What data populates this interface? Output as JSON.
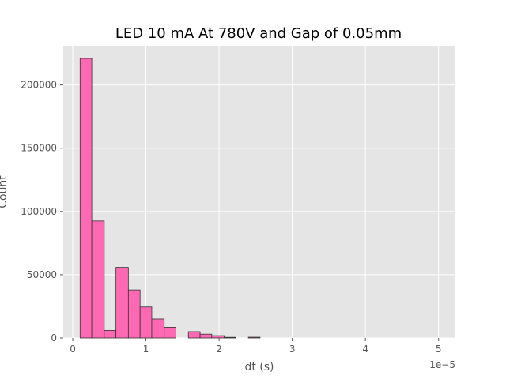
{
  "chart_data": {
    "type": "bar",
    "title": "LED 10 mA At 780V and Gap of 0.05mm",
    "xlabel": "dt (s)",
    "ylabel": "Count",
    "x_offset_label": "1e−5",
    "xlim": [
      -0.13,
      5.23
    ],
    "ylim": [
      0,
      231000
    ],
    "x_scale": "1e-5",
    "x_ticks": [
      0,
      1,
      2,
      3,
      4,
      5
    ],
    "x_tick_labels": [
      "0",
      "1",
      "2",
      "3",
      "4",
      "5"
    ],
    "y_ticks": [
      0,
      50000,
      100000,
      150000,
      200000
    ],
    "y_tick_labels": [
      "0",
      "50000",
      "100000",
      "150000",
      "200000"
    ],
    "grid": true,
    "bar_color": "#ff69b4",
    "edge_color": "#333333",
    "bins": [
      {
        "x0": 0.1,
        "x1": 0.26,
        "count": 221000
      },
      {
        "x0": 0.26,
        "x1": 0.43,
        "count": 92500
      },
      {
        "x0": 0.43,
        "x1": 0.59,
        "count": 6000
      },
      {
        "x0": 0.59,
        "x1": 0.76,
        "count": 55800
      },
      {
        "x0": 0.76,
        "x1": 0.92,
        "count": 38000
      },
      {
        "x0": 0.92,
        "x1": 1.08,
        "count": 24500
      },
      {
        "x0": 1.08,
        "x1": 1.25,
        "count": 15000
      },
      {
        "x0": 1.25,
        "x1": 1.41,
        "count": 8500
      },
      {
        "x0": 1.41,
        "x1": 1.58,
        "count": 0
      },
      {
        "x0": 1.58,
        "x1": 1.74,
        "count": 5000
      },
      {
        "x0": 1.74,
        "x1": 1.9,
        "count": 3000
      },
      {
        "x0": 1.9,
        "x1": 2.07,
        "count": 1800
      },
      {
        "x0": 2.07,
        "x1": 2.23,
        "count": 500
      },
      {
        "x0": 2.23,
        "x1": 2.4,
        "count": 0
      },
      {
        "x0": 2.4,
        "x1": 2.56,
        "count": 600
      },
      {
        "x0": 2.56,
        "x1": 2.72,
        "count": 0
      },
      {
        "x0": 2.72,
        "x1": 2.89,
        "count": 0
      },
      {
        "x0": 2.89,
        "x1": 3.05,
        "count": 0
      },
      {
        "x0": 3.05,
        "x1": 3.22,
        "count": 0
      },
      {
        "x0": 3.22,
        "x1": 3.38,
        "count": 0
      },
      {
        "x0": 3.38,
        "x1": 3.54,
        "count": 0
      },
      {
        "x0": 3.54,
        "x1": 3.71,
        "count": 0
      },
      {
        "x0": 3.71,
        "x1": 3.87,
        "count": 0
      },
      {
        "x0": 3.87,
        "x1": 4.04,
        "count": 0
      },
      {
        "x0": 4.04,
        "x1": 4.2,
        "count": 0
      },
      {
        "x0": 4.2,
        "x1": 4.36,
        "count": 0
      },
      {
        "x0": 4.36,
        "x1": 4.53,
        "count": 0
      },
      {
        "x0": 4.53,
        "x1": 4.69,
        "count": 0
      },
      {
        "x0": 4.69,
        "x1": 4.86,
        "count": 0
      },
      {
        "x0": 4.86,
        "x1": 5.02,
        "count": 0
      }
    ]
  }
}
